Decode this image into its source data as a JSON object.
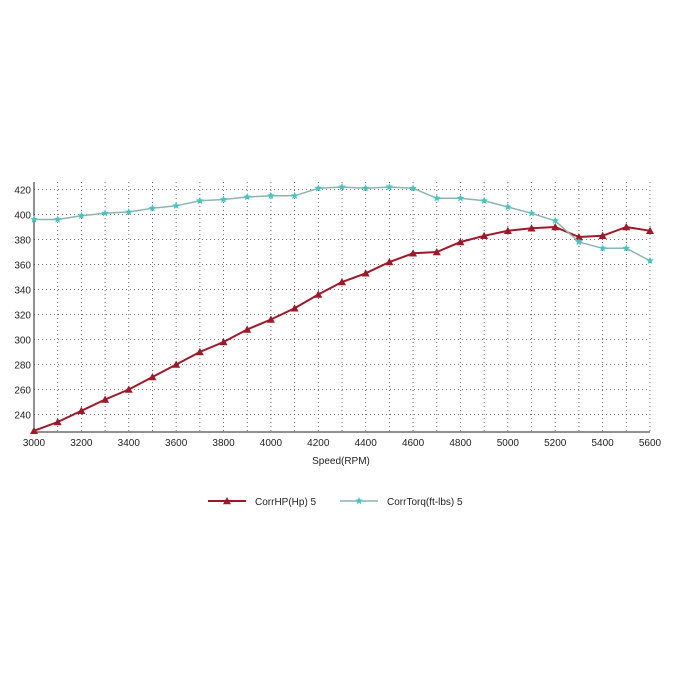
{
  "chart_data": {
    "type": "line",
    "xlabel": "Speed(RPM)",
    "ylabel": "",
    "xlim": [
      3000,
      5600
    ],
    "ylim": [
      226,
      426
    ],
    "xticks": [
      3000,
      3200,
      3400,
      3600,
      3800,
      4000,
      4200,
      4400,
      4600,
      4800,
      5000,
      5200,
      5400,
      5600
    ],
    "yticks": [
      240,
      260,
      280,
      300,
      320,
      340,
      360,
      380,
      400,
      420
    ],
    "grid": true,
    "legend_position": "bottom-center",
    "x": [
      3000,
      3100,
      3200,
      3300,
      3400,
      3500,
      3600,
      3700,
      3800,
      3900,
      4000,
      4100,
      4200,
      4300,
      4400,
      4500,
      4600,
      4700,
      4800,
      4900,
      5000,
      5100,
      5200,
      5300,
      5400,
      5500,
      5600
    ],
    "series": [
      {
        "name": "CorrHP(Hp)  5",
        "color": "#a01828",
        "marker": "triangle",
        "values": [
          227,
          234,
          243,
          252,
          260,
          270,
          280,
          290,
          298,
          308,
          316,
          325,
          336,
          346,
          353,
          362,
          369,
          370,
          378,
          383,
          387,
          389,
          390,
          382,
          383,
          390,
          387
        ]
      },
      {
        "name": "CorrTorq(ft-lbs)  5",
        "color": "#8fb4ad",
        "marker_color": "#3fc8c4",
        "marker": "star",
        "values": [
          396,
          396,
          399,
          401,
          402,
          405,
          407,
          411,
          412,
          414,
          415,
          415,
          421,
          422,
          421,
          422,
          421,
          413,
          413,
          411,
          406,
          401,
          395,
          378,
          373,
          373,
          363
        ]
      }
    ]
  }
}
